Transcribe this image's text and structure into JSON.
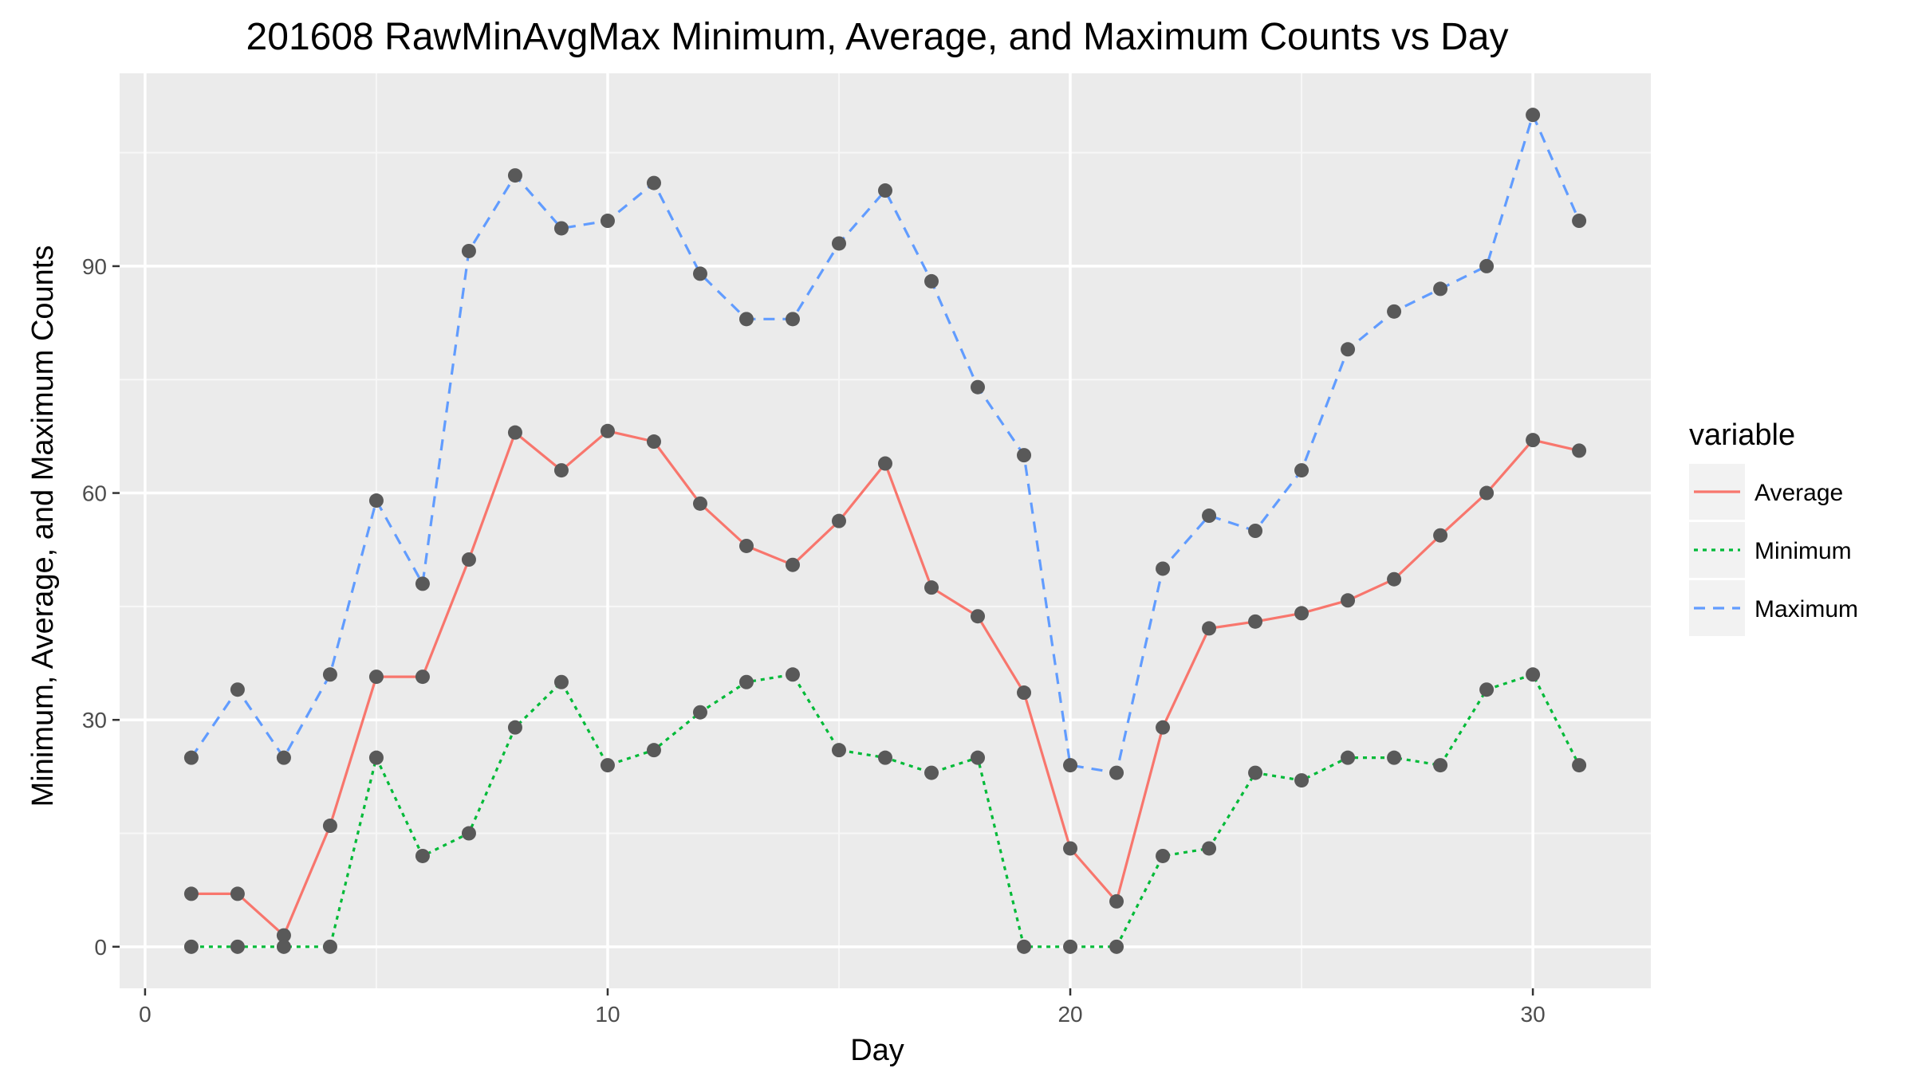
{
  "chart_data": {
    "type": "line",
    "title": "201608 RawMinAvgMax Minimum, Average, and Maximum Counts vs Day",
    "xlabel": "Day",
    "ylabel": "Minimum, Average, and Maximum Counts",
    "xlim": [
      -0.55,
      32.55
    ],
    "ylim": [
      -5.5,
      115.5
    ],
    "x_ticks": [
      0,
      10,
      20,
      30
    ],
    "x_tick_labels": [
      "0",
      "10",
      "20",
      "30"
    ],
    "y_ticks": [
      0,
      30,
      60,
      90
    ],
    "y_tick_labels": [
      "0",
      "30",
      "60",
      "90"
    ],
    "grid": true,
    "legend": {
      "title": "variable",
      "position": "right"
    },
    "x": [
      1,
      2,
      3,
      4,
      5,
      6,
      7,
      8,
      9,
      10,
      11,
      12,
      13,
      14,
      15,
      16,
      17,
      18,
      19,
      20,
      21,
      22,
      23,
      24,
      25,
      26,
      27,
      28,
      29,
      30,
      31
    ],
    "series": [
      {
        "name": "Average",
        "color": "#f8766d",
        "dash": "solid",
        "values": [
          7,
          7,
          1.5,
          16,
          35.7,
          35.7,
          51.2,
          68,
          63,
          68.2,
          66.8,
          58.6,
          53,
          50.5,
          56.3,
          63.9,
          47.5,
          43.7,
          33.6,
          13,
          6,
          29,
          42.1,
          43,
          44.1,
          45.8,
          48.6,
          54.4,
          60,
          67,
          65.6
        ]
      },
      {
        "name": "Minimum",
        "color": "#00ba38",
        "dash": "dotted",
        "values": [
          0,
          0,
          0,
          0,
          25,
          12,
          15,
          29,
          35,
          24,
          26,
          31,
          35,
          36,
          26,
          25,
          23,
          25,
          0,
          0,
          0,
          12,
          13,
          23,
          22,
          25,
          25,
          24,
          34,
          36,
          24
        ]
      },
      {
        "name": "Maximum",
        "color": "#619cff",
        "dash": "dashed",
        "values": [
          25,
          34,
          25,
          36,
          59,
          48,
          92,
          102,
          95,
          96,
          101,
          89,
          83,
          83,
          93,
          100,
          88,
          74,
          65,
          24,
          23,
          50,
          57,
          55,
          63,
          79,
          84,
          87,
          90,
          110,
          96
        ]
      }
    ],
    "point_color": "#595959"
  }
}
